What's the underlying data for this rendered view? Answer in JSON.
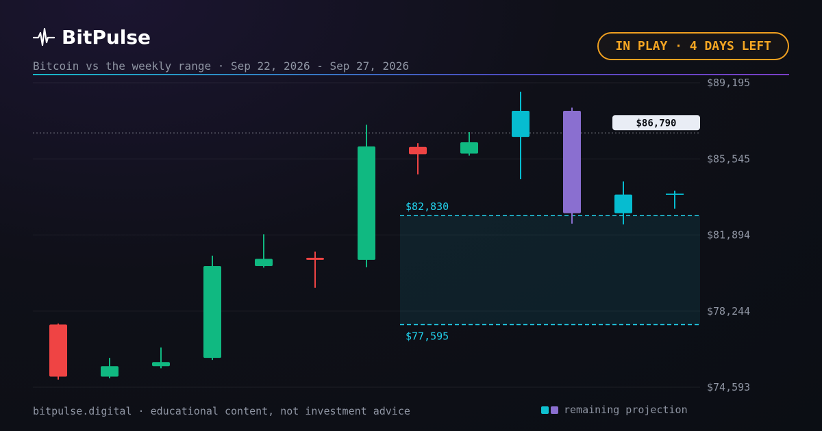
{
  "brand": {
    "name": "BitPulse",
    "icon": "pulse-icon"
  },
  "subtitle": "Bitcoin vs the weekly range · Sep 22, 2026 - Sep 27, 2026",
  "badge": "IN PLAY · 4 DAYS LEFT",
  "footer": "bitpulse.digital · educational content, not investment advice",
  "legend": {
    "label": "remaining projection",
    "colors": [
      "#0fc0d0",
      "#8a6fd0"
    ]
  },
  "colors": {
    "up": "#10b981",
    "down": "#ef4444",
    "projection_up": "#06bcd0",
    "projection_alt": "#8a6fd0",
    "range": "#22d3ee",
    "accent": "#f5a623"
  },
  "chart_data": {
    "type": "candlestick",
    "ylim": [
      74593,
      89195
    ],
    "y_ticks": [
      "$89,195",
      "$85,545",
      "$81,894",
      "$78,244",
      "$74,593"
    ],
    "current_price": {
      "value": 86790,
      "label": "$86,790"
    },
    "range": {
      "high": 82830,
      "high_label": "$82,830",
      "low": 77595,
      "low_label": "$77,595",
      "start_candle": 7
    },
    "candles": [
      {
        "open": 77600,
        "close": 75100,
        "high": 77650,
        "low": 74960,
        "kind": "down"
      },
      {
        "open": 75100,
        "close": 75600,
        "high": 76000,
        "low": 75020,
        "kind": "up"
      },
      {
        "open": 75600,
        "close": 75800,
        "high": 76500,
        "low": 75500,
        "kind": "up"
      },
      {
        "open": 76000,
        "close": 80400,
        "high": 80900,
        "low": 75900,
        "kind": "up"
      },
      {
        "open": 80400,
        "close": 80750,
        "high": 81930,
        "low": 80330,
        "kind": "up"
      },
      {
        "open": 80800,
        "close": 80700,
        "high": 81100,
        "low": 79360,
        "kind": "down"
      },
      {
        "open": 80700,
        "close": 86140,
        "high": 87180,
        "low": 80350,
        "kind": "up"
      },
      {
        "open": 86120,
        "close": 85770,
        "high": 86300,
        "low": 84800,
        "kind": "down"
      },
      {
        "open": 85800,
        "close": 86340,
        "high": 86830,
        "low": 85700,
        "kind": "up"
      },
      {
        "open": 86600,
        "close": 87850,
        "high": 88770,
        "low": 84570,
        "kind": "projection_up"
      },
      {
        "open": 87850,
        "close": 82940,
        "high": 88000,
        "low": 82440,
        "kind": "projection_alt"
      },
      {
        "open": 82940,
        "close": 83830,
        "high": 84460,
        "low": 82400,
        "kind": "projection_up"
      },
      {
        "open": 83830,
        "close": 83850,
        "high": 84020,
        "low": 83160,
        "kind": "projection_up"
      }
    ]
  }
}
